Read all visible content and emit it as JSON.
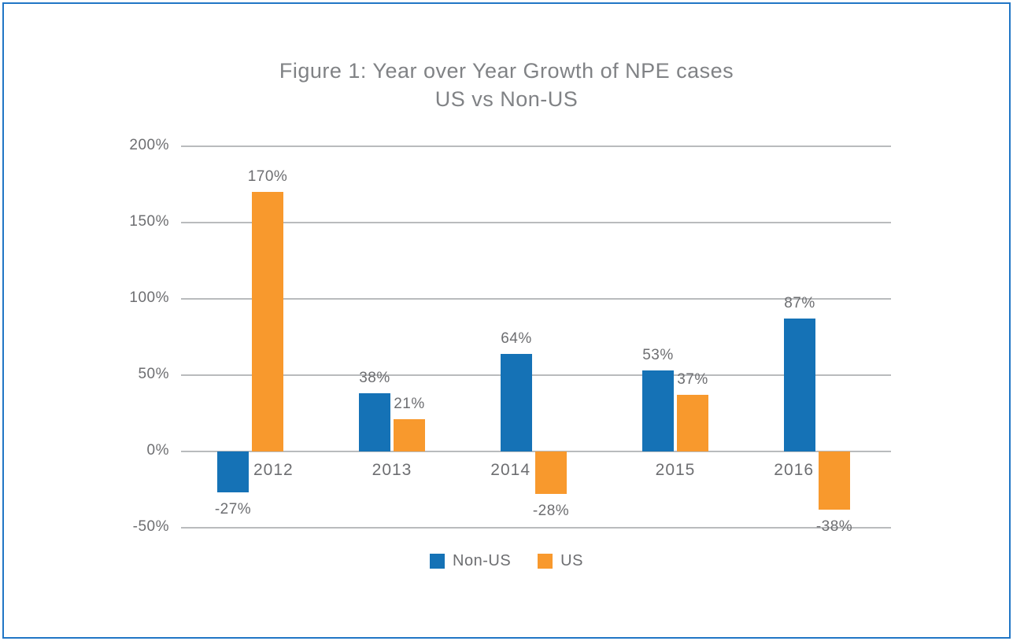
{
  "chart_data": {
    "type": "bar",
    "title": "Figure 1: Year over Year Growth of NPE cases",
    "subtitle": "US vs Non-US",
    "categories": [
      "2012",
      "2013",
      "2014",
      "2015",
      "2016"
    ],
    "series": [
      {
        "name": "Non-US",
        "color": "#1572B6",
        "values": [
          -27,
          38,
          64,
          53,
          87
        ],
        "data_labels": [
          "-27%",
          "38%",
          "64%",
          "53%",
          "87%"
        ]
      },
      {
        "name": "US",
        "color": "#F8992D",
        "values": [
          170,
          21,
          -28,
          37,
          -38
        ],
        "data_labels": [
          "170%",
          "21%",
          "-28%",
          "37%",
          "-38%"
        ]
      }
    ],
    "y_axis": {
      "min": -50,
      "max": 200,
      "step": 50,
      "tick_labels": [
        "200%",
        "150%",
        "100%",
        "50%",
        "0%",
        "-50%"
      ]
    },
    "grid": true,
    "legend_position": "bottom",
    "colors": {
      "non_us": "#1572B6",
      "us": "#F8992D",
      "gridline": "#b9bbbd",
      "text": "#6D6E71",
      "title_text": "#808285",
      "frame_border": "#2176C5"
    }
  }
}
